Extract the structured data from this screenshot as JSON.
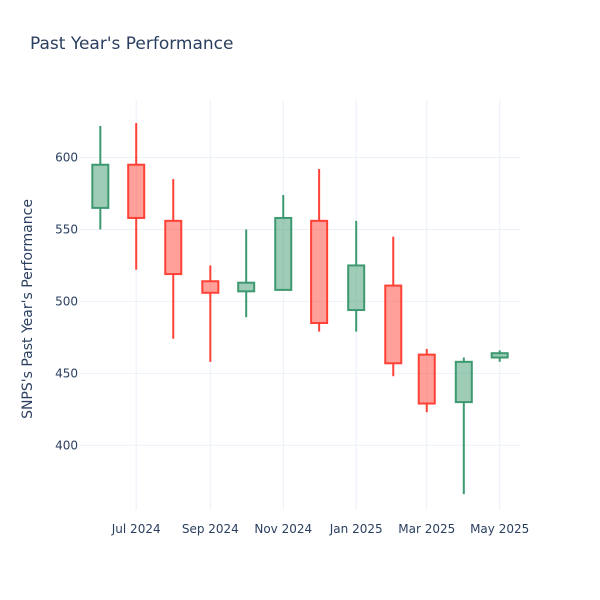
{
  "chart_data": {
    "type": "candlestick",
    "title": "Past Year's Performance",
    "xlabel": "",
    "ylabel": "SNPS's Past Year's Performance",
    "ylim": [
      355,
      640
    ],
    "y_ticks": [
      400,
      450,
      500,
      550,
      600
    ],
    "x_ticks": [
      {
        "date": "2024-07-01",
        "label": "Jul 2024"
      },
      {
        "date": "2024-09-01",
        "label": "Sep 2024"
      },
      {
        "date": "2024-11-01",
        "label": "Nov 2024"
      },
      {
        "date": "2025-01-01",
        "label": "Jan 2025"
      },
      {
        "date": "2025-03-01",
        "label": "Mar 2025"
      },
      {
        "date": "2025-05-01",
        "label": "May 2025"
      }
    ],
    "grid": true,
    "increasing_color": "#3d9970",
    "decreasing_color": "#ff4136",
    "candles": [
      {
        "date": "2024-06-01",
        "open": 565,
        "high": 622,
        "low": 550,
        "close": 595
      },
      {
        "date": "2024-07-01",
        "open": 595,
        "high": 624,
        "low": 522,
        "close": 558
      },
      {
        "date": "2024-08-01",
        "open": 556,
        "high": 585,
        "low": 474,
        "close": 519
      },
      {
        "date": "2024-09-01",
        "open": 514,
        "high": 525,
        "low": 458,
        "close": 506
      },
      {
        "date": "2024-10-01",
        "open": 507,
        "high": 550,
        "low": 489,
        "close": 513
      },
      {
        "date": "2024-11-01",
        "open": 508,
        "high": 574,
        "low": 508,
        "close": 558
      },
      {
        "date": "2024-12-01",
        "open": 556,
        "high": 592,
        "low": 479,
        "close": 485
      },
      {
        "date": "2025-01-01",
        "open": 494,
        "high": 556,
        "low": 479,
        "close": 525
      },
      {
        "date": "2025-02-01",
        "open": 511,
        "high": 545,
        "low": 448,
        "close": 457
      },
      {
        "date": "2025-03-01",
        "open": 463,
        "high": 467,
        "low": 423,
        "close": 429
      },
      {
        "date": "2025-04-01",
        "open": 430,
        "high": 461,
        "low": 366,
        "close": 458
      },
      {
        "date": "2025-05-01",
        "open": 461,
        "high": 466,
        "low": 458,
        "close": 464
      }
    ]
  }
}
